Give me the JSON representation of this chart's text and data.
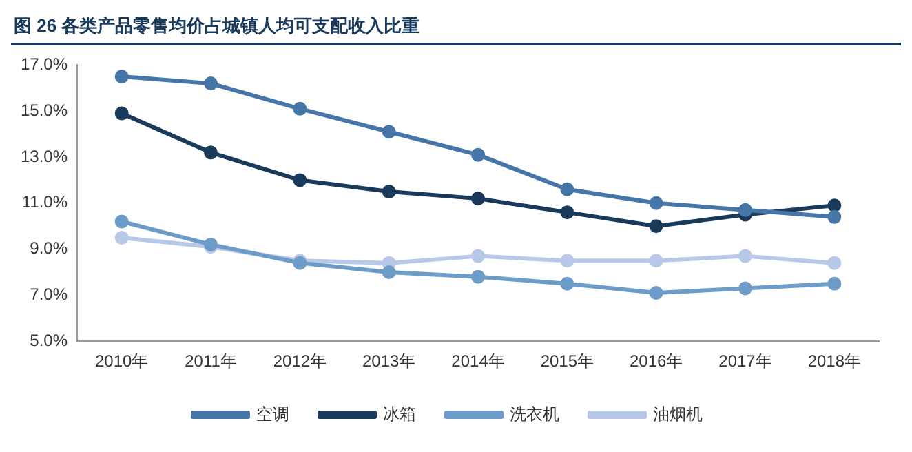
{
  "chart_data": {
    "type": "line",
    "title": "图 26 各类产品零售均价占城镇人均可支配收入比重",
    "categories": [
      "2010年",
      "2011年",
      "2012年",
      "2013年",
      "2014年",
      "2015年",
      "2016年",
      "2017年",
      "2018年"
    ],
    "series": [
      {
        "name": "空调",
        "color": "#4675a8",
        "values": [
          16.5,
          16.2,
          15.1,
          14.1,
          13.1,
          11.6,
          11.0,
          10.7,
          10.4
        ]
      },
      {
        "name": "冰箱",
        "color": "#1a3a5c",
        "values": [
          14.9,
          13.2,
          12.0,
          11.5,
          11.2,
          10.6,
          10.0,
          10.5,
          10.9
        ]
      },
      {
        "name": "洗衣机",
        "color": "#6d9cc9",
        "values": [
          10.2,
          9.2,
          8.4,
          8.0,
          7.8,
          7.5,
          7.1,
          7.3,
          7.5
        ]
      },
      {
        "name": "油烟机",
        "color": "#b7c8e8",
        "values": [
          9.5,
          9.1,
          8.5,
          8.4,
          8.7,
          8.5,
          8.5,
          8.7,
          8.4
        ]
      }
    ],
    "ylim": [
      5,
      17
    ],
    "yticks": [
      {
        "value": 5,
        "label": "5.0%"
      },
      {
        "value": 7,
        "label": "7.0%"
      },
      {
        "value": 9,
        "label": "9.0%"
      },
      {
        "value": 11,
        "label": "11.0%"
      },
      {
        "value": 13,
        "label": "13.0%"
      },
      {
        "value": 15,
        "label": "15.0%"
      },
      {
        "value": 17,
        "label": "17.0%"
      }
    ],
    "grid": false,
    "legend": "bottom",
    "marker": "circle",
    "line_style": "solid"
  }
}
